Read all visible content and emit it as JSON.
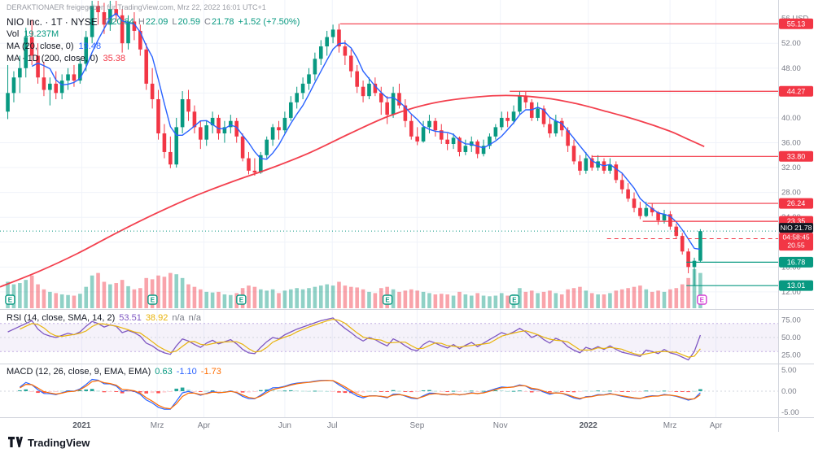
{
  "colors": {
    "up": "#089981",
    "down": "#f23645",
    "accent_blue": "#2962ff",
    "purple": "#7e57c2",
    "yellow": "#e8b30c",
    "orange": "#ff6d00",
    "axis_text": "#787b86",
    "grid": "#f0f3fa",
    "separator": "#d1d4dc",
    "dark": "#131722",
    "vol_up": "rgba(8,153,129,0.45)",
    "vol_down": "rgba(242,54,69,0.45)",
    "hist_pos": "#26a69a",
    "hist_pos_weak": "#b2dfdb",
    "hist_neg": "#ff5252",
    "hist_neg_weak": "#ffcdd2",
    "band_fill": "rgba(126,87,194,0.08)",
    "upcoming": "#d33dd3"
  },
  "header": {
    "watermark": "DERAKTIONAER freigegeben für TradingView.com, Mrz 22, 2022 16:01 UTC+1",
    "symbol": "NIO Inc. · 1T · NYSE",
    "ohlc": {
      "o_label": "O",
      "o": "20.84",
      "h_label": "H",
      "h": "22.09",
      "l_label": "L",
      "l": "20.59",
      "c_label": "C",
      "c": "21.78",
      "change": "+1.52 (+7.50%)"
    },
    "vol_label": "Vol",
    "vol_value": "19.237M",
    "ma20_label": "MA (20, close, 0)",
    "ma20_value": "19.48",
    "ma200_label": "MA · 1D (200, close, 0)",
    "ma200_value": "35.38"
  },
  "rsi_legend": {
    "label": "RSI (14, close, SMA, 14, 2)",
    "v1": "53.51",
    "v2": "38.92",
    "v3": "n/a",
    "v4": "n/a"
  },
  "macd_legend": {
    "label": "MACD (12, 26, close, 9, EMA, EMA)",
    "hist": "0.63",
    "macd": "-1.10",
    "signal": "-1.73"
  },
  "footer": {
    "brand": "TradingView"
  },
  "chart_data": {
    "type": "candlestick",
    "title": "NIO Inc. · 1T · NYSE",
    "ylim": [
      9.5,
      57
    ],
    "yticks": [
      12,
      16,
      20,
      24,
      28,
      32,
      36,
      40,
      44,
      48,
      52
    ],
    "y_top_label": "56 USD",
    "t_start": 0.01,
    "t_step": 0.0077391,
    "x_axis": [
      {
        "t": 0.105,
        "label": "2021",
        "bold": true
      },
      {
        "t": 0.202,
        "label": "Mrz"
      },
      {
        "t": 0.262,
        "label": "Apr"
      },
      {
        "t": 0.366,
        "label": "Jun"
      },
      {
        "t": 0.427,
        "label": "Jul"
      },
      {
        "t": 0.536,
        "label": "Sep"
      },
      {
        "t": 0.643,
        "label": "Nov"
      },
      {
        "t": 0.756,
        "label": "2022",
        "bold": true
      },
      {
        "t": 0.861,
        "label": "Mrz"
      },
      {
        "t": 0.92,
        "label": "Apr"
      }
    ],
    "candles": [
      [
        41,
        48.5,
        39.8,
        44,
        420
      ],
      [
        44,
        47.5,
        42.5,
        46.5,
        380
      ],
      [
        46.5,
        50,
        44,
        48,
        400
      ],
      [
        48,
        54.5,
        46.5,
        53,
        450
      ],
      [
        53,
        55.8,
        48.5,
        50,
        520
      ],
      [
        50,
        52,
        45.5,
        46.5,
        380
      ],
      [
        46.5,
        49,
        43.5,
        44.5,
        300
      ],
      [
        44.5,
        46.5,
        42,
        45.5,
        260
      ],
      [
        45.5,
        47.5,
        43,
        44,
        240
      ],
      [
        44,
        47,
        43,
        46,
        220
      ],
      [
        46,
        48,
        44.5,
        47,
        210
      ],
      [
        47,
        48.5,
        45,
        46,
        200
      ],
      [
        46,
        49.5,
        45.5,
        48.7,
        230
      ],
      [
        48.7,
        54,
        47.5,
        53,
        340
      ],
      [
        53,
        59.5,
        52,
        58,
        520
      ],
      [
        58,
        61.5,
        55,
        57,
        560
      ],
      [
        57,
        58.5,
        53.5,
        55,
        420
      ],
      [
        55,
        59,
        54,
        57.5,
        380
      ],
      [
        57.5,
        61,
        55.5,
        56.5,
        400
      ],
      [
        56.5,
        57.5,
        50.5,
        52,
        450
      ],
      [
        52,
        56.5,
        51,
        55.5,
        350
      ],
      [
        55.5,
        57,
        52.5,
        54,
        300
      ],
      [
        54,
        55,
        50,
        51,
        320
      ],
      [
        51,
        52,
        44.5,
        45.5,
        480
      ],
      [
        45.5,
        48,
        41.5,
        43,
        460
      ],
      [
        43,
        44.5,
        36.5,
        37.5,
        520
      ],
      [
        37.5,
        39,
        33.5,
        34.5,
        500
      ],
      [
        34.5,
        37,
        31.9,
        32.5,
        560
      ],
      [
        32.5,
        40,
        32,
        38.5,
        540
      ],
      [
        38.5,
        44.3,
        37.5,
        43,
        480
      ],
      [
        43,
        44.5,
        39.5,
        41,
        380
      ],
      [
        41,
        42,
        37.5,
        38.5,
        340
      ],
      [
        38.5,
        39.5,
        35,
        36.5,
        300
      ],
      [
        36.5,
        39.5,
        35.5,
        38.8,
        260
      ],
      [
        38.8,
        41,
        37.5,
        40,
        250
      ],
      [
        40,
        40.5,
        36.5,
        37.5,
        260
      ],
      [
        37.5,
        39.5,
        36,
        38.5,
        220
      ],
      [
        38.5,
        40.5,
        37.5,
        39.5,
        210
      ],
      [
        39.5,
        40,
        36,
        37,
        240
      ],
      [
        37,
        37.5,
        33,
        33.5,
        320
      ],
      [
        33.5,
        34.5,
        30.9,
        31.5,
        360
      ],
      [
        31.5,
        33.5,
        30.7,
        31.2,
        340
      ],
      [
        31.2,
        34.5,
        31,
        34,
        300
      ],
      [
        34,
        37,
        33.5,
        36.5,
        280
      ],
      [
        36.5,
        39,
        35.5,
        38.5,
        300
      ],
      [
        38.5,
        39.5,
        36.5,
        38,
        240
      ],
      [
        38,
        41,
        37.5,
        40,
        280
      ],
      [
        40,
        43.5,
        39.5,
        42.5,
        300
      ],
      [
        42.5,
        45,
        41.5,
        44,
        320
      ],
      [
        44,
        46.5,
        43,
        45.5,
        300
      ],
      [
        45.5,
        48,
        44.5,
        47,
        320
      ],
      [
        47,
        50.5,
        46,
        49.5,
        340
      ],
      [
        49.5,
        52.5,
        48.5,
        51.5,
        360
      ],
      [
        51.5,
        54,
        50,
        53,
        380
      ],
      [
        53,
        55,
        52,
        54.2,
        360
      ],
      [
        54.2,
        55.13,
        50.5,
        51.5,
        420
      ],
      [
        51.5,
        52.5,
        48.5,
        50,
        360
      ],
      [
        50,
        51,
        46.5,
        47.5,
        340
      ],
      [
        47.5,
        48.5,
        44,
        45,
        330
      ],
      [
        45,
        46,
        42.5,
        43.5,
        300
      ],
      [
        43.5,
        46.5,
        43,
        45.5,
        260
      ],
      [
        45.5,
        46.5,
        43.5,
        44,
        240
      ],
      [
        44,
        45,
        40.5,
        42.5,
        320
      ],
      [
        42.5,
        43.5,
        39,
        40.5,
        340
      ],
      [
        40.5,
        45,
        40,
        44,
        300
      ],
      [
        44,
        45.5,
        41.5,
        42,
        260
      ],
      [
        42,
        43,
        38.5,
        39.5,
        280
      ],
      [
        39.5,
        40.5,
        36.5,
        37,
        300
      ],
      [
        37,
        38.5,
        35.6,
        36.2,
        280
      ],
      [
        36.2,
        39.5,
        36,
        38.5,
        260
      ],
      [
        38.5,
        40.5,
        37.5,
        39.5,
        240
      ],
      [
        39.5,
        40,
        37,
        38,
        220
      ],
      [
        38,
        39,
        35.8,
        36.5,
        230
      ],
      [
        36.5,
        37.5,
        34.8,
        35.8,
        220
      ],
      [
        35.8,
        37.5,
        35,
        36.8,
        200
      ],
      [
        36.8,
        37,
        33.8,
        34.5,
        260
      ],
      [
        34.5,
        36.5,
        34,
        35.5,
        220
      ],
      [
        35.5,
        37,
        34.5,
        36.2,
        200
      ],
      [
        36.2,
        36.5,
        33.5,
        34.2,
        240
      ],
      [
        34.2,
        36.5,
        33.8,
        35.5,
        200
      ],
      [
        35.5,
        37.5,
        35,
        37,
        190
      ],
      [
        37,
        39,
        36.5,
        38.5,
        200
      ],
      [
        38.5,
        41,
        38,
        40,
        240
      ],
      [
        40,
        41,
        38.5,
        39.5,
        200
      ],
      [
        39.5,
        42,
        39,
        41,
        220
      ],
      [
        41,
        44.27,
        40.5,
        43.5,
        320
      ],
      [
        43.5,
        44.2,
        41.5,
        42.5,
        260
      ],
      [
        42.5,
        43,
        39.5,
        40,
        280
      ],
      [
        40,
        42.5,
        39.5,
        41.5,
        240
      ],
      [
        41.5,
        42,
        38.5,
        39,
        260
      ],
      [
        39,
        40,
        36.8,
        37.5,
        280
      ],
      [
        37.5,
        40.5,
        37,
        39.5,
        240
      ],
      [
        39.5,
        40,
        37,
        38,
        220
      ],
      [
        38,
        38.5,
        34.5,
        35.5,
        300
      ],
      [
        35.5,
        36.5,
        32.5,
        33,
        320
      ],
      [
        33,
        34,
        30.8,
        31.5,
        340
      ],
      [
        31.5,
        34.5,
        31,
        33.5,
        280
      ],
      [
        33.5,
        34,
        31.5,
        32,
        240
      ],
      [
        32,
        34,
        31.5,
        33,
        220
      ],
      [
        33,
        33.5,
        31,
        31.5,
        220
      ],
      [
        31.5,
        33.5,
        31,
        32.5,
        240
      ],
      [
        32.5,
        33,
        29.5,
        30,
        280
      ],
      [
        30,
        31,
        27.8,
        28.5,
        300
      ],
      [
        28.5,
        29.5,
        26.5,
        27,
        320
      ],
      [
        27,
        28,
        24.8,
        25.5,
        340
      ],
      [
        25.5,
        26.5,
        23.7,
        24.2,
        360
      ],
      [
        24.2,
        26.5,
        24,
        25.5,
        300
      ],
      [
        25.5,
        26.24,
        24.2,
        24.8,
        260
      ],
      [
        24.8,
        25,
        22.8,
        23.5,
        280
      ],
      [
        23.5,
        25.2,
        23,
        24.5,
        260
      ],
      [
        24.5,
        25,
        22,
        22.5,
        300
      ],
      [
        22.5,
        23,
        20.5,
        21,
        320
      ],
      [
        21,
        21.5,
        18,
        18.5,
        380
      ],
      [
        18.5,
        19,
        15,
        16,
        480
      ],
      [
        16,
        17.5,
        13.01,
        17,
        620
      ],
      [
        17,
        22.09,
        16.8,
        21.78,
        560
      ]
    ],
    "ma20_period": 5,
    "ma200": [
      [
        0.0,
        12.8
      ],
      [
        0.05,
        15.3
      ],
      [
        0.1,
        18.2
      ],
      [
        0.15,
        21.5
      ],
      [
        0.2,
        24.6
      ],
      [
        0.25,
        27.4
      ],
      [
        0.3,
        29.8
      ],
      [
        0.35,
        32.0
      ],
      [
        0.4,
        34.5
      ],
      [
        0.45,
        37.5
      ],
      [
        0.5,
        40.3
      ],
      [
        0.55,
        42.2
      ],
      [
        0.6,
        43.2
      ],
      [
        0.65,
        43.6
      ],
      [
        0.7,
        43.2
      ],
      [
        0.74,
        42.3
      ],
      [
        0.78,
        41.0
      ],
      [
        0.82,
        39.6
      ],
      [
        0.86,
        37.9
      ],
      [
        0.88,
        36.8
      ],
      [
        0.905,
        35.38
      ]
    ],
    "levels": [
      {
        "value": 55.13,
        "label": "55.13",
        "t_start": 0.437,
        "color": "down"
      },
      {
        "value": 44.27,
        "label": "44.27",
        "t_start": 0.655,
        "color": "down"
      },
      {
        "value": 33.8,
        "label": "33.80",
        "t_start": 0.761,
        "color": "down"
      },
      {
        "value": 26.24,
        "label": "26.24",
        "t_start": 0.832,
        "color": "down"
      },
      {
        "value": 23.35,
        "label": "23.35",
        "t_start": 0.826,
        "color": "down"
      },
      {
        "value": 16.78,
        "label": "16.78",
        "t_start": 0.882,
        "color": "up"
      },
      {
        "value": 13.01,
        "label": "13.01",
        "t_start": 0.882,
        "color": "up"
      }
    ],
    "last": {
      "symbol": "NIO",
      "value": 21.78,
      "label": "21.78"
    },
    "prev_close": {
      "value": 20.55,
      "label": "20.55",
      "countdown": "04:58:45",
      "t_start": 0.78
    },
    "earnings": [
      {
        "t": 0.013
      },
      {
        "t": 0.196
      },
      {
        "t": 0.31
      },
      {
        "t": 0.498
      },
      {
        "t": 0.661
      },
      {
        "t": 0.902,
        "upcoming": true
      }
    ],
    "rsi": {
      "ylim": [
        14,
        86
      ],
      "band": [
        30,
        70
      ],
      "ticks": [
        75,
        50,
        25
      ],
      "ma_period": 3,
      "values": [
        58,
        62,
        66,
        70,
        74,
        62,
        55,
        52,
        50,
        53,
        56,
        54,
        58,
        66,
        73,
        70,
        65,
        68,
        66,
        57,
        60,
        57,
        52,
        42,
        38,
        32,
        28,
        26,
        38,
        48,
        45,
        40,
        36,
        42,
        46,
        41,
        44,
        47,
        41,
        33,
        28,
        27,
        36,
        44,
        50,
        48,
        54,
        58,
        62,
        65,
        68,
        71,
        74,
        76,
        78,
        70,
        63,
        57,
        50,
        45,
        50,
        47,
        42,
        38,
        48,
        44,
        38,
        33,
        31,
        40,
        45,
        42,
        38,
        35,
        40,
        34,
        39,
        43,
        37,
        42,
        47,
        52,
        57,
        54,
        58,
        63,
        58,
        50,
        54,
        47,
        42,
        49,
        45,
        37,
        32,
        28,
        36,
        33,
        37,
        33,
        38,
        33,
        29,
        27,
        25,
        23,
        32,
        30,
        27,
        33,
        28,
        26,
        22,
        18,
        30,
        53.5
      ]
    },
    "macd": {
      "fast": 3,
      "slow": 6,
      "signal_p": 2,
      "ticks": [
        5,
        0,
        -5
      ]
    }
  }
}
